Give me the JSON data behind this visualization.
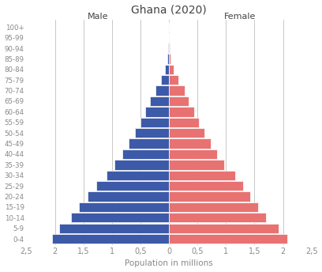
{
  "title": "Ghana (2020)",
  "age_groups": [
    "0-4",
    "5-9",
    "10-14",
    "15-19",
    "20-24",
    "25-29",
    "30-34",
    "35-39",
    "40-44",
    "45-49",
    "50-54",
    "55-59",
    "60-64",
    "65-69",
    "70-74",
    "75-79",
    "80-84",
    "85-89",
    "90-94",
    "95-99",
    "100+"
  ],
  "male": [
    2.05,
    1.93,
    1.72,
    1.58,
    1.43,
    1.28,
    1.1,
    0.95,
    0.82,
    0.7,
    0.6,
    0.5,
    0.42,
    0.33,
    0.24,
    0.14,
    0.07,
    0.025,
    0.01,
    0.004,
    0.001
  ],
  "female": [
    2.08,
    1.93,
    1.7,
    1.57,
    1.42,
    1.3,
    1.16,
    0.97,
    0.85,
    0.73,
    0.62,
    0.52,
    0.44,
    0.35,
    0.27,
    0.16,
    0.08,
    0.03,
    0.011,
    0.005,
    0.001
  ],
  "male_color": "#3d5aa8",
  "female_color": "#e87272",
  "xlim": 2.5,
  "xlabel": "Population in millions",
  "male_label": "Male",
  "female_label": "Female",
  "grid_color": "#c8c8c8",
  "tick_color": "#888888",
  "label_color": "#444444",
  "title_color": "#444444",
  "background_color": "#ffffff",
  "bar_edge_color": "#ffffff",
  "bar_linewidth": 0.5,
  "bar_height": 0.92,
  "xtick_vals": [
    -2.5,
    -2.0,
    -1.5,
    -1.0,
    -0.5,
    0.0,
    0.5,
    1.0,
    1.5,
    2.0,
    2.5
  ],
  "xtick_labels": [
    "2,5",
    "2",
    "1,5",
    "1",
    "0,5",
    "0",
    "0,5",
    "1",
    "1,5",
    "2",
    "2,5"
  ],
  "grid_xvals": [
    -2.0,
    -1.5,
    -1.0,
    -0.5,
    0.0,
    0.5,
    1.0,
    1.5,
    2.0
  ]
}
